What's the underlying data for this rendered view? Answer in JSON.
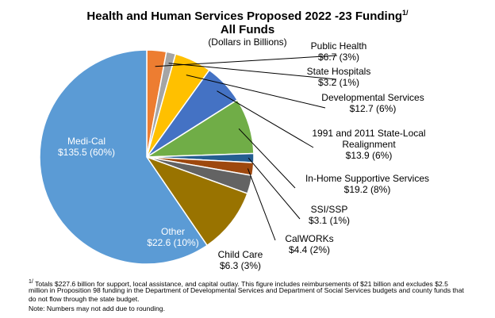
{
  "chart_data": {
    "type": "pie",
    "title": "Health and Human Services Proposed 2022 -23 Funding",
    "title_footnote_marker": "1/",
    "title_line2": "All Funds",
    "subtitle": "(Dollars in Billions)",
    "slices": [
      {
        "name": "Public Health",
        "value": 6.7,
        "label_value": "$6.7 (3%)",
        "color": "#ED7D31"
      },
      {
        "name": "State Hospitals",
        "value": 3.2,
        "label_value": "$3.2 (1%)",
        "color": "#A5A5A5"
      },
      {
        "name": "Developmental Services",
        "value": 12.7,
        "label_value": "$12.7 (6%)",
        "color": "#FFC000"
      },
      {
        "name": "1991 and 2011 State-Local Realignment",
        "name_lines": [
          "1991 and 2011 State-Local",
          "Realignment"
        ],
        "value": 13.9,
        "label_value": "$13.9 (6%)",
        "color": "#4472C4"
      },
      {
        "name": "In-Home Supportive Services",
        "value": 19.2,
        "label_value": "$19.2 (8%)",
        "color": "#70AD47"
      },
      {
        "name": "SSI/SSP",
        "value": 3.1,
        "label_value": "$3.1 (1%)",
        "color": "#255E91"
      },
      {
        "name": "CalWORKs",
        "value": 4.4,
        "label_value": "$4.4 (2%)",
        "color": "#9E480E"
      },
      {
        "name": "Child Care",
        "value": 6.3,
        "label_value": "$6.3 (3%)",
        "color": "#636363"
      },
      {
        "name": "Other",
        "value": 22.6,
        "label_value": "$22.6 (10%)",
        "color": "#997300"
      },
      {
        "name": "Medi-Cal",
        "value": 135.5,
        "label_value": "$135.5 (60%)",
        "color": "#5B9BD5"
      }
    ]
  },
  "footnote": {
    "marker": "1/",
    "lines": [
      "Totals $227.6 billion for support, local assistance, and capital outlay.  This figure includes reimbursements of $21 billion and excludes $2.5",
      "million in Proposition 98 funding in the Department of Developmental Services and Department of Social Services budgets and county funds that",
      "do not flow through the state budget."
    ],
    "note": "Note: Numbers may not add due to rounding."
  }
}
